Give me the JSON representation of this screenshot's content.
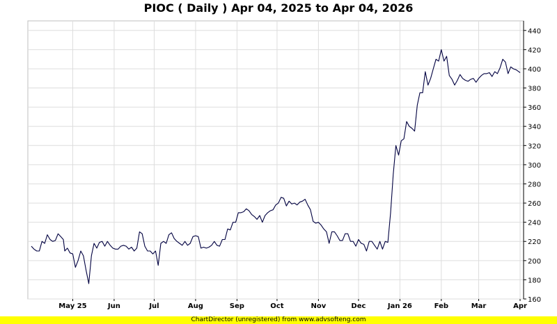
{
  "chart_data": {
    "type": "line",
    "title": "PIOC ( Daily ) Apr 04, 2025 to Apr 04, 2026",
    "ylim": [
      160,
      450
    ],
    "y_ticks": [
      160,
      180,
      200,
      220,
      240,
      260,
      280,
      300,
      320,
      340,
      360,
      380,
      400,
      420,
      440
    ],
    "x_ticks": [
      {
        "label": "May 25",
        "x": 76
      },
      {
        "label": "Jun",
        "x": 107
      },
      {
        "label": "Jul",
        "x": 137
      },
      {
        "label": "Aug",
        "x": 168
      },
      {
        "label": "Sep",
        "x": 199
      },
      {
        "label": "Oct",
        "x": 229
      },
      {
        "label": "Nov",
        "x": 260
      },
      {
        "label": "Dec",
        "x": 290
      },
      {
        "label": "Jan 26",
        "x": 321
      },
      {
        "label": "Feb",
        "x": 352
      },
      {
        "label": "Mar",
        "x": 380
      },
      {
        "label": "Apr",
        "x": 411
      }
    ],
    "x_range": [
      45,
      411
    ],
    "grid": true,
    "line_color": "#000040",
    "series": [
      {
        "points": [
          [
            45,
            215
          ],
          [
            47,
            212
          ],
          [
            49,
            210
          ],
          [
            51,
            210
          ],
          [
            53,
            220
          ],
          [
            55,
            218
          ],
          [
            57,
            227
          ],
          [
            59,
            222
          ],
          [
            61,
            220
          ],
          [
            63,
            221
          ],
          [
            65,
            228
          ],
          [
            67,
            225
          ],
          [
            69,
            222
          ],
          [
            70,
            210
          ],
          [
            72,
            213
          ],
          [
            74,
            208
          ],
          [
            76,
            207
          ],
          [
            78,
            193
          ],
          [
            80,
            200
          ],
          [
            82,
            210
          ],
          [
            84,
            205
          ],
          [
            86,
            190
          ],
          [
            88,
            176
          ],
          [
            90,
            205
          ],
          [
            92,
            218
          ],
          [
            94,
            213
          ],
          [
            96,
            219
          ],
          [
            98,
            220
          ],
          [
            100,
            215
          ],
          [
            102,
            220
          ],
          [
            104,
            216
          ],
          [
            106,
            213
          ],
          [
            108,
            212
          ],
          [
            110,
            212
          ],
          [
            112,
            215
          ],
          [
            114,
            216
          ],
          [
            116,
            215
          ],
          [
            118,
            212
          ],
          [
            120,
            214
          ],
          [
            122,
            210
          ],
          [
            124,
            213
          ],
          [
            126,
            230
          ],
          [
            128,
            228
          ],
          [
            130,
            215
          ],
          [
            132,
            210
          ],
          [
            134,
            210
          ],
          [
            136,
            207
          ],
          [
            138,
            210
          ],
          [
            140,
            195
          ],
          [
            142,
            218
          ],
          [
            144,
            220
          ],
          [
            146,
            218
          ],
          [
            148,
            227
          ],
          [
            150,
            229
          ],
          [
            152,
            223
          ],
          [
            154,
            220
          ],
          [
            156,
            218
          ],
          [
            158,
            216
          ],
          [
            160,
            220
          ],
          [
            162,
            216
          ],
          [
            164,
            218
          ],
          [
            166,
            225
          ],
          [
            168,
            226
          ],
          [
            170,
            225
          ],
          [
            172,
            213
          ],
          [
            174,
            214
          ],
          [
            176,
            213
          ],
          [
            178,
            214
          ],
          [
            180,
            216
          ],
          [
            182,
            220
          ],
          [
            184,
            216
          ],
          [
            186,
            215
          ],
          [
            188,
            222
          ],
          [
            190,
            222
          ],
          [
            192,
            233
          ],
          [
            194,
            232
          ],
          [
            196,
            240
          ],
          [
            198,
            240
          ],
          [
            200,
            250
          ],
          [
            202,
            250
          ],
          [
            204,
            251
          ],
          [
            206,
            254
          ],
          [
            208,
            252
          ],
          [
            210,
            248
          ],
          [
            212,
            246
          ],
          [
            214,
            243
          ],
          [
            216,
            247
          ],
          [
            218,
            240
          ],
          [
            220,
            247
          ],
          [
            222,
            250
          ],
          [
            224,
            252
          ],
          [
            226,
            253
          ],
          [
            228,
            258
          ],
          [
            230,
            260
          ],
          [
            232,
            266
          ],
          [
            234,
            265
          ],
          [
            236,
            257
          ],
          [
            238,
            262
          ],
          [
            240,
            259
          ],
          [
            242,
            260
          ],
          [
            244,
            258
          ],
          [
            246,
            261
          ],
          [
            248,
            262
          ],
          [
            250,
            264
          ],
          [
            252,
            258
          ],
          [
            254,
            253
          ],
          [
            256,
            241
          ],
          [
            258,
            239
          ],
          [
            260,
            240
          ],
          [
            262,
            237
          ],
          [
            264,
            233
          ],
          [
            266,
            230
          ],
          [
            268,
            218
          ],
          [
            270,
            230
          ],
          [
            272,
            230
          ],
          [
            274,
            226
          ],
          [
            276,
            221
          ],
          [
            278,
            221
          ],
          [
            280,
            228
          ],
          [
            282,
            228
          ],
          [
            284,
            220
          ],
          [
            286,
            220
          ],
          [
            288,
            215
          ],
          [
            290,
            222
          ],
          [
            292,
            218
          ],
          [
            294,
            217
          ],
          [
            296,
            210
          ],
          [
            298,
            220
          ],
          [
            300,
            220
          ],
          [
            302,
            216
          ],
          [
            304,
            212
          ],
          [
            306,
            220
          ],
          [
            308,
            212
          ],
          [
            310,
            220
          ],
          [
            312,
            219
          ],
          [
            314,
            250
          ],
          [
            316,
            290
          ],
          [
            318,
            320
          ],
          [
            320,
            310
          ],
          [
            322,
            325
          ],
          [
            324,
            327
          ],
          [
            326,
            345
          ],
          [
            328,
            340
          ],
          [
            330,
            338
          ],
          [
            332,
            335
          ],
          [
            334,
            362
          ],
          [
            336,
            375
          ],
          [
            338,
            375
          ],
          [
            340,
            397
          ],
          [
            342,
            383
          ],
          [
            344,
            390
          ],
          [
            346,
            400
          ],
          [
            348,
            410
          ],
          [
            350,
            408
          ],
          [
            352,
            420
          ],
          [
            354,
            408
          ],
          [
            356,
            413
          ],
          [
            358,
            393
          ],
          [
            360,
            389
          ],
          [
            362,
            383
          ],
          [
            364,
            388
          ],
          [
            366,
            394
          ],
          [
            368,
            390
          ],
          [
            370,
            388
          ],
          [
            372,
            387
          ],
          [
            374,
            389
          ],
          [
            376,
            390
          ],
          [
            378,
            386
          ],
          [
            380,
            390
          ],
          [
            382,
            393
          ],
          [
            384,
            395
          ],
          [
            386,
            395
          ],
          [
            388,
            396
          ],
          [
            390,
            392
          ],
          [
            392,
            397
          ],
          [
            394,
            395
          ],
          [
            396,
            401
          ],
          [
            398,
            410
          ],
          [
            400,
            407
          ],
          [
            402,
            395
          ],
          [
            404,
            402
          ],
          [
            406,
            400
          ],
          [
            408,
            399
          ],
          [
            410,
            397
          ],
          [
            411,
            396
          ]
        ]
      }
    ],
    "footer": "ChartDirector (unregistered) from www.advsofteng.com"
  }
}
